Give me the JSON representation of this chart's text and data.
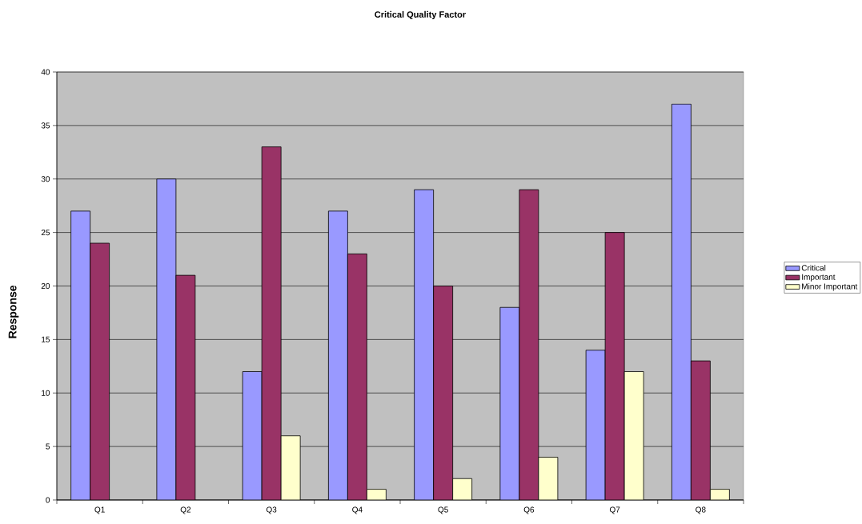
{
  "chart_data": {
    "type": "bar",
    "title": "Critical Quality Factor",
    "ylabel": "Response",
    "categories": [
      "Q1",
      "Q2",
      "Q3",
      "Q4",
      "Q5",
      "Q6",
      "Q7",
      "Q8"
    ],
    "series": [
      {
        "name": "Critical",
        "color": "#9999ff",
        "values": [
          27,
          30,
          12,
          27,
          29,
          18,
          14,
          37
        ]
      },
      {
        "name": "Important",
        "color": "#993366",
        "values": [
          24,
          21,
          33,
          23,
          20,
          29,
          25,
          13
        ]
      },
      {
        "name": "Minor Important",
        "color": "#ffffcc",
        "values": [
          null,
          null,
          6,
          1,
          2,
          4,
          12,
          1
        ]
      }
    ],
    "ylim": [
      0,
      40
    ],
    "yticks": [
      0,
      5,
      10,
      15,
      20,
      25,
      30,
      35,
      40
    ],
    "grid": "y",
    "legend": "right"
  }
}
